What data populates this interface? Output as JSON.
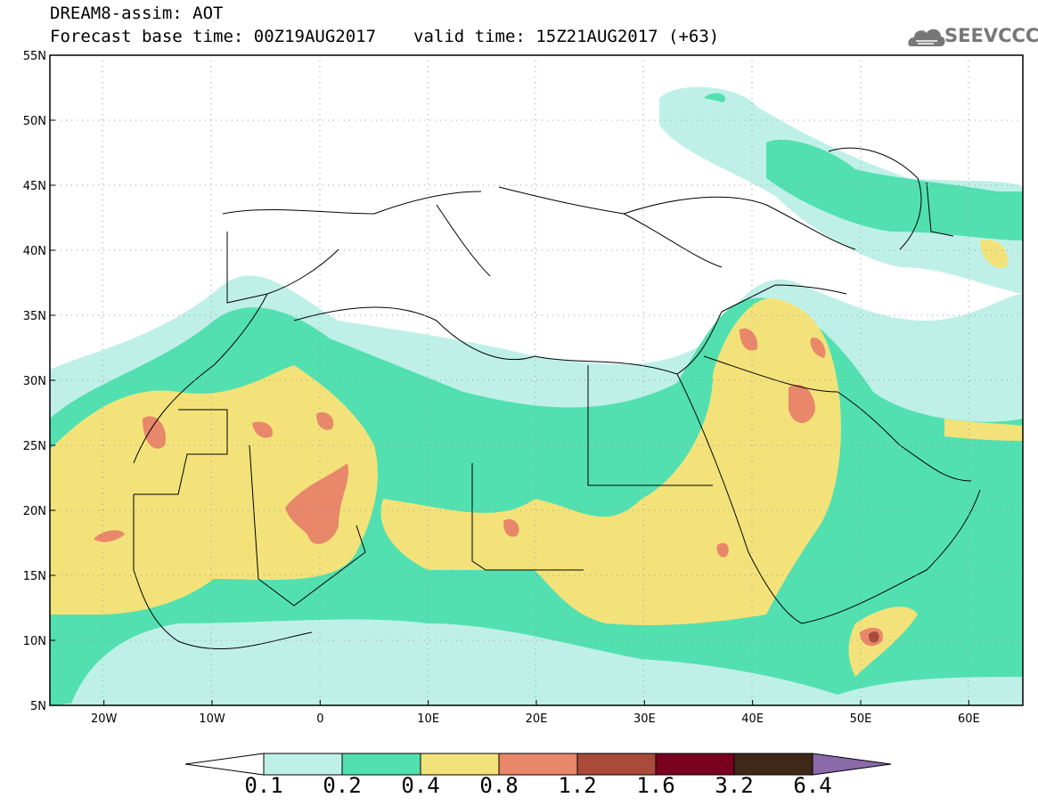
{
  "header": {
    "title_line1": "DREAM8-assim: AOT",
    "base_time": "Forecast base time: 00Z19AUG2017",
    "valid_time": "valid time: 15Z21AUG2017 (+63)"
  },
  "logo": {
    "text": "SEEVCCC",
    "icon": "cloud-icon"
  },
  "map": {
    "lon_range": [
      -25,
      65
    ],
    "lat_range": [
      5,
      55
    ],
    "lat_ticks": [
      {
        "value": 55,
        "label": "55N"
      },
      {
        "value": 50,
        "label": "50N"
      },
      {
        "value": 45,
        "label": "45N"
      },
      {
        "value": 40,
        "label": "40N"
      },
      {
        "value": 35,
        "label": "35N"
      },
      {
        "value": 30,
        "label": "30N"
      },
      {
        "value": 25,
        "label": "25N"
      },
      {
        "value": 20,
        "label": "20N"
      },
      {
        "value": 15,
        "label": "15N"
      },
      {
        "value": 10,
        "label": "10N"
      },
      {
        "value": 5,
        "label": "5N"
      }
    ],
    "lon_ticks": [
      {
        "value": -20,
        "label": "20W"
      },
      {
        "value": -10,
        "label": "10W"
      },
      {
        "value": 0,
        "label": "0"
      },
      {
        "value": 10,
        "label": "10E"
      },
      {
        "value": 20,
        "label": "20E"
      },
      {
        "value": 30,
        "label": "30E"
      },
      {
        "value": 40,
        "label": "40E"
      },
      {
        "value": 50,
        "label": "50E"
      },
      {
        "value": 60,
        "label": "60E"
      }
    ],
    "gridlines": "dotted"
  },
  "colorbar": {
    "labels": [
      "0.1",
      "0.2",
      "0.4",
      "0.8",
      "1.2",
      "1.6",
      "3.2",
      "6.4"
    ],
    "colors": [
      "#ffffff",
      "#bff0e8",
      "#52e0b0",
      "#f3e27a",
      "#e8876a",
      "#a94a3a",
      "#7a0020",
      "#402818",
      "#8a6aa8"
    ]
  }
}
